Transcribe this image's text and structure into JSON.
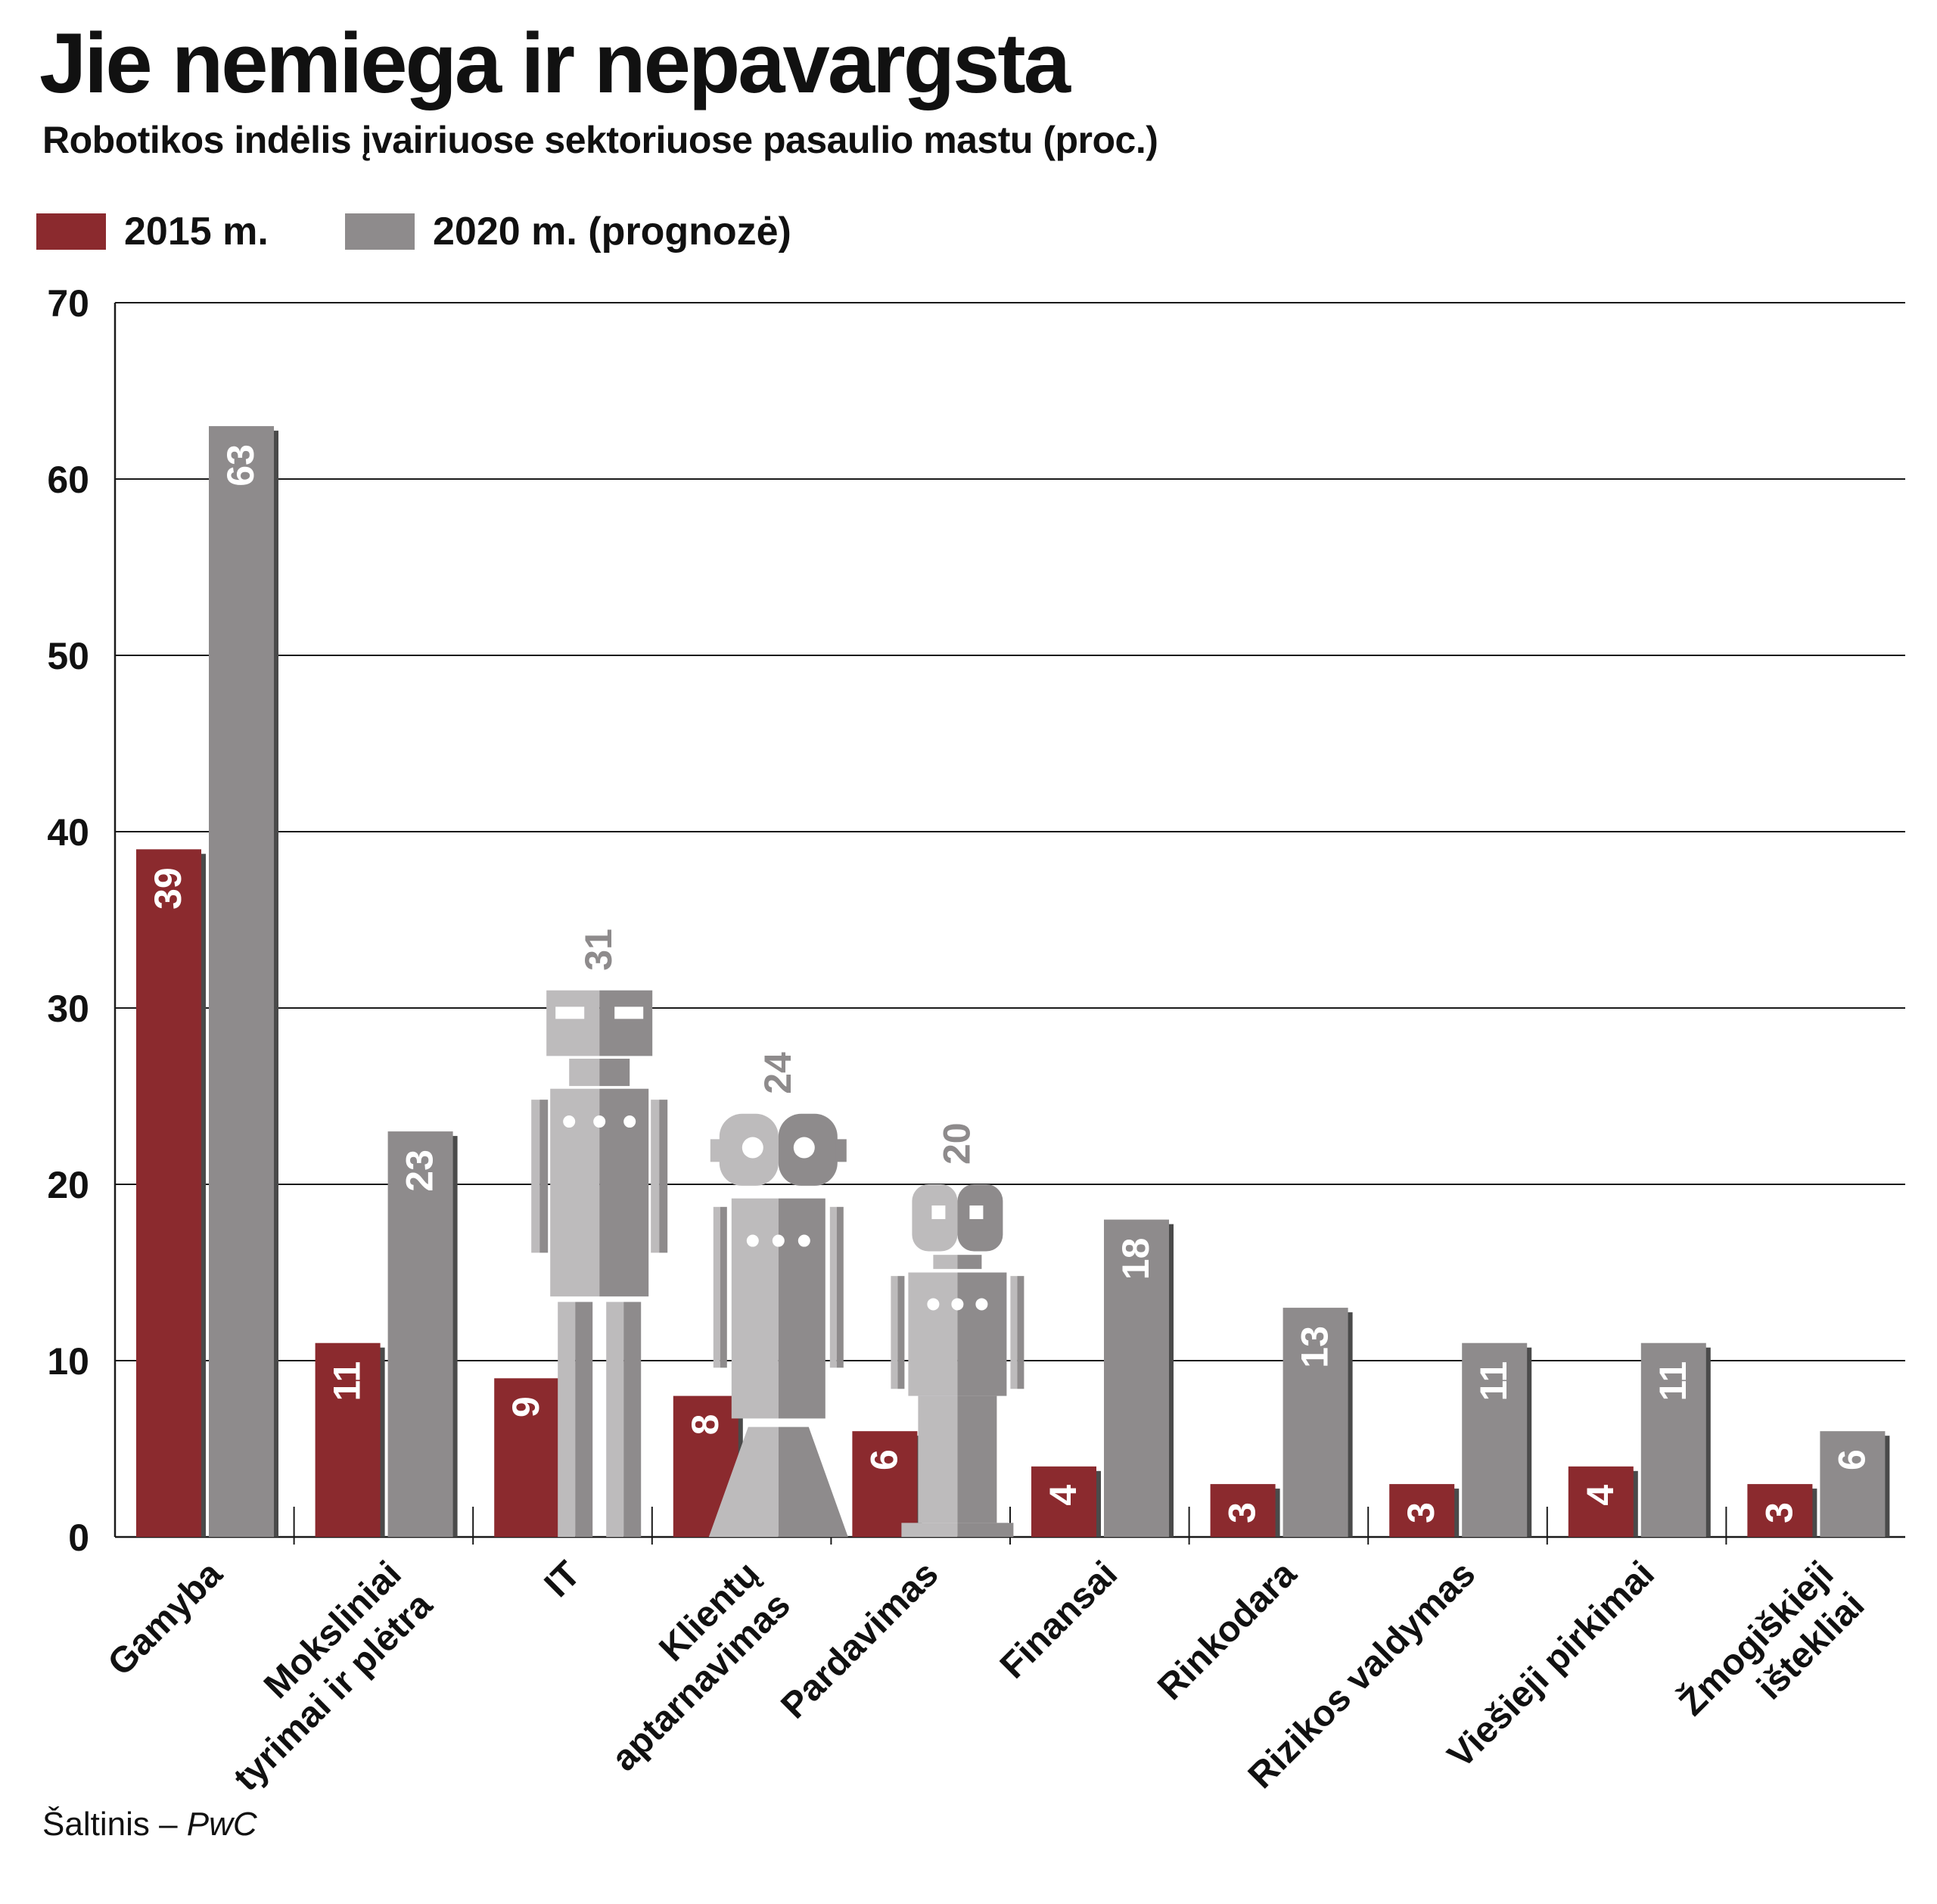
{
  "header": {
    "title": "Jie nemiega ir nepavargsta",
    "subtitle": "Robotikos indėlis įvairiuose sektoriuose pasaulio mastu (proc.)"
  },
  "legend": [
    {
      "label": "2015 m.",
      "color": "#8b2a2e"
    },
    {
      "label": "2020 m. (prognozė)",
      "color": "#8e8b8c"
    }
  ],
  "source": {
    "prefix": "Šaltinis – ",
    "name": "PwC"
  },
  "chart_data": {
    "type": "bar",
    "title": "Jie nemiega ir nepavargsta",
    "subtitle": "Robotikos indėlis įvairiuose sektoriuose pasaulio mastu (proc.)",
    "xlabel": "",
    "ylabel": "",
    "ylim": [
      0,
      70
    ],
    "yticks": [
      0,
      10,
      20,
      30,
      40,
      50,
      60,
      70
    ],
    "grid": true,
    "legend_position": "top-left",
    "categories": [
      [
        "Gamyba"
      ],
      [
        "Moksliniai",
        "tyrimai ir plėtra"
      ],
      [
        "IT"
      ],
      [
        "Klientų",
        "aptarnavimas"
      ],
      [
        "Pardavimas"
      ],
      [
        "Finansai"
      ],
      [
        "Rinkodara"
      ],
      [
        "Rizikos valdymas"
      ],
      [
        "Viešieji pirkimai"
      ],
      [
        "Žmogiškieji",
        "ištekliai"
      ]
    ],
    "series": [
      {
        "name": "2015 m.",
        "color": "#8b2a2e",
        "values": [
          39,
          11,
          9,
          8,
          6,
          4,
          3,
          3,
          4,
          3
        ]
      },
      {
        "name": "2020 m. (prognozė)",
        "color": "#8e8b8c",
        "values": [
          63,
          23,
          31,
          24,
          20,
          18,
          13,
          11,
          11,
          6
        ]
      }
    ],
    "robot_figures": [
      {
        "category_index": 2,
        "style": "tall-robot"
      },
      {
        "category_index": 3,
        "style": "round-robot"
      },
      {
        "category_index": 4,
        "style": "small-robot"
      }
    ]
  }
}
